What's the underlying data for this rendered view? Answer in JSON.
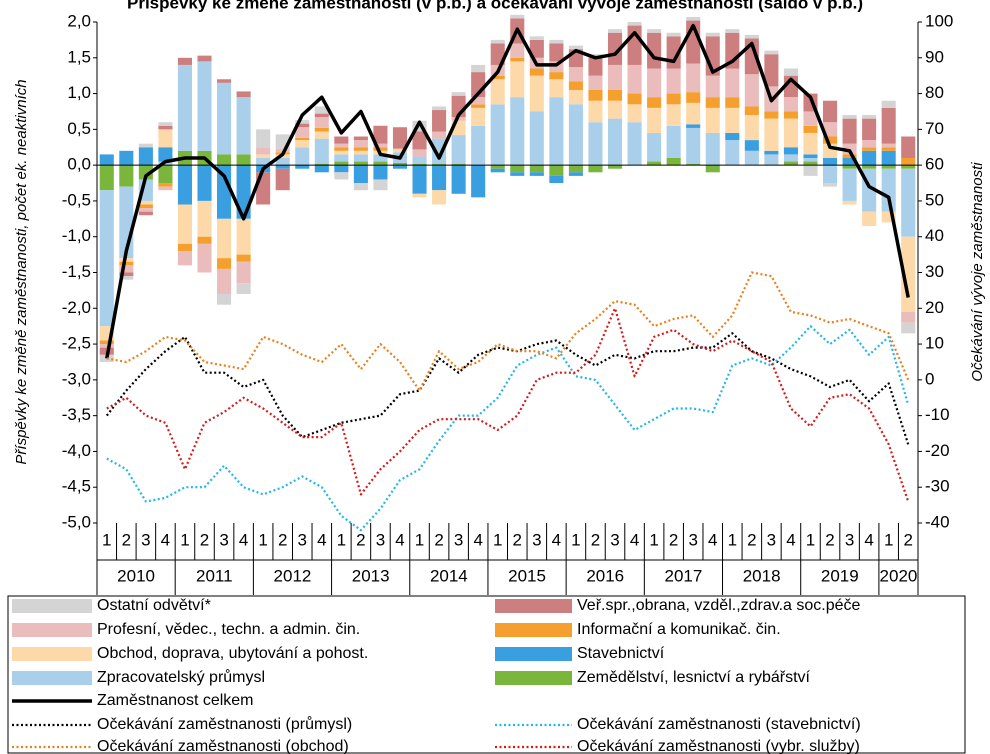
{
  "chart_data": {
    "type": "bar",
    "title": "Příspěvky ke změně zaměstnanosti (v p.b.) a očekávání vývoje zaměstnanosti (saldo v p.b.)",
    "y_label": "Příspěvky ke změně zaměstnanosti, počet ek. neaktivních",
    "y2_label": "Očekávání vývoje zaměstnanosti",
    "categories": [
      "1",
      "2",
      "3",
      "4",
      "1",
      "2",
      "3",
      "4",
      "1",
      "2",
      "3",
      "4",
      "1",
      "2",
      "3",
      "4",
      "1",
      "2",
      "3",
      "4",
      "1",
      "2",
      "3",
      "4",
      "1",
      "2",
      "3",
      "4",
      "1",
      "2",
      "3",
      "4",
      "1",
      "2",
      "3",
      "4",
      "1",
      "2",
      "3",
      "4",
      "1",
      "2"
    ],
    "years": [
      "2010",
      "2011",
      "2012",
      "2013",
      "2014",
      "2015",
      "2016",
      "2017",
      "2018",
      "2019",
      "2020"
    ],
    "ylim": [
      -5,
      2
    ],
    "yticks": [
      {
        "value": 2,
        "label": "2,0"
      },
      {
        "value": 1.5,
        "label": "1,5"
      },
      {
        "value": 1,
        "label": "1,0"
      },
      {
        "value": 0.5,
        "label": "0,5"
      },
      {
        "value": 0,
        "label": "0,0"
      },
      {
        "value": -0.5,
        "label": "-0,5"
      },
      {
        "value": -1,
        "label": "-1,0"
      },
      {
        "value": -1.5,
        "label": "-1,5"
      },
      {
        "value": -2,
        "label": "-2,0"
      },
      {
        "value": -2.5,
        "label": "-2,5"
      },
      {
        "value": -3,
        "label": "-3,0"
      },
      {
        "value": -3.5,
        "label": "-3,5"
      },
      {
        "value": -4,
        "label": "-4,0"
      },
      {
        "value": -4.5,
        "label": "-4,5"
      },
      {
        "value": -5,
        "label": "-5,0"
      }
    ],
    "y2lim": [
      -40,
      100
    ],
    "y2ticks": [
      100,
      90,
      80,
      70,
      60,
      50,
      40,
      30,
      20,
      10,
      0,
      -10,
      -20,
      -30,
      -40
    ],
    "grid": false,
    "legend": "bottom",
    "series": [
      {
        "name": "Ostatní odvětví*",
        "type": "bar",
        "color": "#d4d4d4",
        "values": [
          -0.1,
          -0.05,
          0.05,
          0.05,
          0,
          0,
          -0.15,
          -0.15,
          0.25,
          0.2,
          0.05,
          0.1,
          -0.1,
          -0.1,
          -0.15,
          0,
          0.15,
          0.05,
          0.05,
          0.1,
          0.05,
          0.05,
          0.05,
          0.05,
          0.05,
          0.05,
          0.05,
          0.05,
          0.05,
          0.05,
          0.05,
          0.05,
          0.05,
          0.05,
          0.05,
          0.1,
          -0.15,
          -0.05,
          0.05,
          0.05,
          0.1,
          -0.15
        ]
      },
      {
        "name": "Veř.spr.,obrana, vzděl.,zdrav.a soc.péče",
        "type": "bar",
        "color": "#cd7f7f",
        "values": [
          -0.1,
          -0.05,
          -0.05,
          0.05,
          0.1,
          0.08,
          0.05,
          0.08,
          -0.45,
          -0.3,
          0.05,
          0.05,
          0.1,
          0.05,
          0.25,
          0.3,
          0.25,
          0.3,
          0.3,
          0.35,
          0.3,
          0.35,
          0.25,
          0.25,
          0.25,
          0.25,
          0.45,
          0.55,
          0.5,
          0.45,
          0.6,
          0.55,
          0.5,
          0.5,
          0.45,
          0.3,
          0.25,
          0.3,
          0.35,
          0.3,
          0.5,
          0.3
        ]
      },
      {
        "name": "Profesní, vědec., techn. a admin. čin.",
        "type": "bar",
        "color": "#ebbcbc",
        "values": [
          -0.05,
          -0.1,
          -0.05,
          -0.05,
          -0.2,
          -0.4,
          -0.35,
          -0.3,
          0.1,
          0.05,
          0.15,
          0.15,
          0.05,
          0.1,
          0.05,
          0,
          0.1,
          0.1,
          0.05,
          0.1,
          0.15,
          0.2,
          0.15,
          0.15,
          0.2,
          0.2,
          0.35,
          0.4,
          0.4,
          0.35,
          0.4,
          0.3,
          0.4,
          0.45,
          0.35,
          0.2,
          0.2,
          0.2,
          0.15,
          0.1,
          0.05,
          -0.15
        ]
      },
      {
        "name": "Informační a komunikač. čin.",
        "type": "bar",
        "color": "#f5a02e",
        "values": [
          -0.05,
          -0.05,
          -0.05,
          -0.05,
          -0.1,
          -0.1,
          -0.15,
          -0.1,
          0,
          0.03,
          0.03,
          0.05,
          0.05,
          0.05,
          0.05,
          0,
          0,
          0,
          0,
          0.05,
          0.05,
          0.05,
          0.1,
          0.1,
          0.12,
          0.15,
          0.15,
          0.15,
          0.15,
          0.15,
          0.15,
          0.15,
          0.15,
          0.12,
          0.1,
          0.1,
          0.1,
          0.1,
          0.05,
          0.05,
          0.05,
          0.1
        ]
      },
      {
        "name": "Obchod, doprava, ubytování a pohost.",
        "type": "bar",
        "color": "#fdd9a9",
        "values": [
          -0.2,
          -0.05,
          -0.05,
          0.25,
          -0.55,
          -0.5,
          -0.55,
          -0.5,
          0.05,
          0.05,
          0.1,
          0.1,
          0.05,
          0.05,
          0.05,
          0.05,
          -0.05,
          -0.2,
          0.2,
          0.25,
          0.35,
          0.5,
          0.5,
          0.25,
          0.2,
          0.3,
          0.25,
          0.25,
          0.35,
          0.3,
          0.3,
          0.35,
          0.35,
          0.35,
          0.45,
          0.4,
          0.3,
          0.2,
          -0.05,
          -0.2,
          -0.15,
          -1.05
        ]
      },
      {
        "name": "Stavebnictví",
        "type": "bar",
        "color": "#3a9fe0",
        "values": [
          0.15,
          0.2,
          0.25,
          0.2,
          -0.55,
          -0.5,
          -0.75,
          -0.75,
          -0.1,
          -0.05,
          -0.05,
          -0.1,
          -0.1,
          -0.25,
          -0.2,
          -0.05,
          -0.4,
          -0.35,
          -0.4,
          -0.45,
          -0.05,
          -0.05,
          -0.05,
          -0.1,
          -0.05,
          0,
          0,
          0,
          0,
          0,
          0.05,
          0,
          0.1,
          0.15,
          0.05,
          0.1,
          0.05,
          0.1,
          0.1,
          0.2,
          0.2,
          0
        ]
      },
      {
        "name": "Zpracovatelský průmysl",
        "type": "bar",
        "color": "#a9cfea",
        "values": [
          -1.9,
          -1,
          -0.3,
          0.05,
          1.2,
          1.25,
          1,
          0.8,
          0.1,
          0.1,
          0.25,
          0.35,
          0.1,
          0.1,
          0.1,
          0.15,
          0.1,
          0.35,
          0.4,
          0.55,
          0.85,
          0.95,
          0.75,
          0.95,
          0.85,
          0.6,
          0.65,
          0.6,
          0.4,
          0.45,
          0.5,
          0.45,
          0.35,
          0.2,
          0.15,
          0.1,
          0.05,
          -0.25,
          -0.45,
          -0.6,
          -0.6,
          -0.95
        ]
      },
      {
        "name": "Zemědělství, lesnictví a rybářství",
        "type": "bar",
        "color": "#7ab63b",
        "values": [
          -0.35,
          -0.3,
          -0.2,
          -0.25,
          0.2,
          0.2,
          0.15,
          0.15,
          0,
          0,
          0,
          0.02,
          0.05,
          0.05,
          0.05,
          0.03,
          0.02,
          0.02,
          0.02,
          0,
          -0.05,
          -0.1,
          -0.1,
          -0.15,
          -0.1,
          -0.1,
          -0.05,
          0,
          0.05,
          0.1,
          0.02,
          -0.1,
          0,
          0,
          0,
          0.05,
          0.05,
          0,
          -0.05,
          -0.05,
          -0.05,
          -0.05
        ]
      },
      {
        "name": "Zaměstnanost celkem",
        "type": "line",
        "color": "#000000",
        "values": [
          -2.7,
          -1.2,
          -0.15,
          0.05,
          0.1,
          0.1,
          -0.15,
          -0.75,
          -0.05,
          0.15,
          0.7,
          0.95,
          0.45,
          0.75,
          0.15,
          0.1,
          0.6,
          0.1,
          0.7,
          1,
          1.3,
          1.9,
          1.4,
          1.4,
          1.6,
          1.5,
          1.55,
          1.85,
          1.5,
          1.45,
          1.95,
          1.3,
          1.45,
          1.7,
          0.9,
          1.2,
          0.95,
          0.25,
          0.2,
          -0.3,
          -0.45,
          -1.85
        ]
      },
      {
        "name": "Očekávání zaměstnanosti (průmysl)",
        "type": "dotted",
        "axis": "y2",
        "color": "#000000",
        "values": [
          -10,
          -3,
          3,
          8,
          12,
          2,
          2,
          -2,
          0,
          -10,
          -16,
          -14,
          -12,
          -11,
          -10,
          -4,
          -3,
          6,
          2,
          7,
          9,
          8,
          10,
          11,
          7,
          4,
          7,
          6,
          8,
          8,
          9,
          9,
          13,
          8,
          6,
          3,
          1,
          -2,
          0,
          -6,
          -1,
          -18
        ]
      },
      {
        "name": "Očekávání zaměstnanosti (stavebnictví)",
        "type": "dotted",
        "axis": "y2",
        "color": "#1fb8e8",
        "values": [
          -22,
          -25,
          -34,
          -33,
          -30,
          -30,
          -24,
          -30,
          -32,
          -30,
          -27,
          -30,
          -38,
          -42,
          -36,
          -28,
          -25,
          -17,
          -10,
          -10,
          -5,
          4,
          7,
          9,
          1,
          0,
          -7,
          -14,
          -11,
          -8,
          -8,
          -9,
          4,
          6,
          4,
          9,
          15,
          10,
          14,
          7,
          12,
          -7
        ]
      },
      {
        "name": "Očekávání zaměstnanosti (obchod)",
        "type": "dotted",
        "axis": "y2",
        "color": "#e8801c",
        "values": [
          6,
          5,
          8,
          12,
          11,
          5,
          4,
          3,
          12,
          10,
          7,
          5,
          10,
          3,
          10,
          5,
          -3,
          8,
          3,
          5,
          10,
          8,
          8,
          6,
          13,
          17,
          22,
          21,
          15,
          17,
          18,
          12,
          18,
          30,
          29,
          19,
          18,
          16,
          17,
          15,
          13,
          0
        ]
      },
      {
        "name": "Očekávání zaměstnanosti (vybr. služby)",
        "type": "dotted",
        "axis": "y2",
        "color": "#d41a1a",
        "values": [
          -8,
          -5,
          -10,
          -12,
          -25,
          -12,
          -9,
          -5,
          -8,
          -12,
          -16,
          -16,
          -12,
          -32,
          -25,
          -20,
          -14,
          -11,
          -11,
          -11,
          -14,
          -10,
          0,
          2,
          2,
          7,
          20,
          1,
          12,
          14,
          10,
          8,
          11,
          8,
          5,
          -8,
          -13,
          -5,
          -4,
          -8,
          -18,
          -34
        ]
      }
    ]
  }
}
